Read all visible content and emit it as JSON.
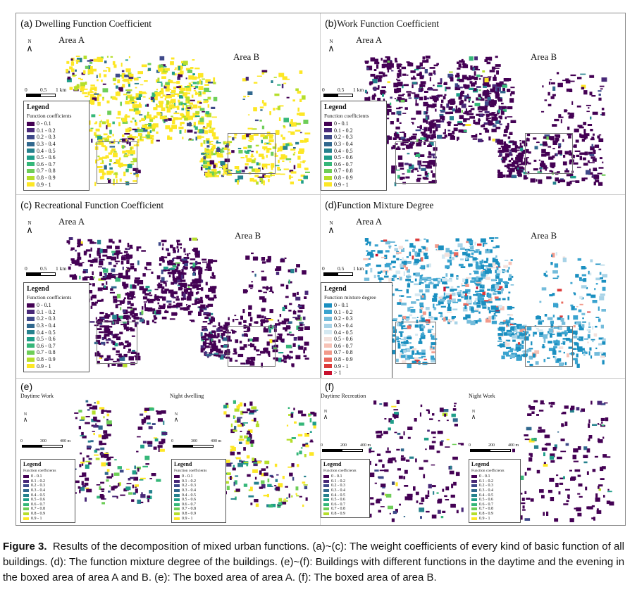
{
  "panels": {
    "a": {
      "label": "(a)",
      "title": "Dwelling Function Coefficient"
    },
    "b": {
      "label": "(b)",
      "title": "Work Function Coefficient"
    },
    "c": {
      "label": "(c)",
      "title": "Recreational Function Coefficient"
    },
    "d": {
      "label": "(d)",
      "title": "Function Mixture Degree"
    },
    "e": {
      "label": "(e)",
      "sub_left": "Daytime Work",
      "sub_right": "Night dwelling"
    },
    "f": {
      "label": "(f)",
      "sub_left": "Daytime Recreation",
      "sub_right": "Night Work"
    }
  },
  "area_a": "Area A",
  "area_b": "Area B",
  "north": "N",
  "scale_km": {
    "t0": "0",
    "t1": "0.5",
    "t2": "1 km"
  },
  "scale_e": {
    "t0": "0",
    "t1": "300",
    "t2": "400 m"
  },
  "scale_f": {
    "t0": "0",
    "t1": "200",
    "t2": "400 m"
  },
  "legend": {
    "title": "Legend",
    "subtitle": "Function coefficients",
    "subtitle_mix": "Function mixture degree",
    "rows": [
      "0 - 0.1",
      "0.1 - 0.2",
      "0.2 - 0.3",
      "0.3 - 0.4",
      "0.4 - 0.5",
      "0.5 - 0.6",
      "0.6 - 0.7",
      "0.7 - 0.8",
      "0.8 - 0.9",
      "0.9 - 1"
    ],
    "rows_mix": [
      "0 - 0.1",
      "0.1 - 0.2",
      "0.2 - 0.3",
      "0.3 - 0.4",
      "0.4 - 0.5",
      "0.5 - 0.6",
      "0.6 - 0.7",
      "0.7 - 0.8",
      "0.8 - 0.9",
      "0.9 - 1",
      "> 1"
    ],
    "rows_f": [
      "0 - 0.1",
      "0.1 - 0.2",
      "0.2 - 0.3",
      "0.3 - 0.4",
      "0.4 - 0.5",
      "0.5 - 0.6",
      "0.6 - 0.7",
      "0.7 - 0.8",
      "0.8 - 0.9"
    ],
    "colors": [
      "#440154",
      "#482878",
      "#3e4989",
      "#31688e",
      "#26828e",
      "#1f9e89",
      "#35b779",
      "#6ece58",
      "#b5de2b",
      "#fde725"
    ],
    "colors_mix": [
      "#1a8fc0",
      "#3aa3cf",
      "#74bcdb",
      "#a8d3e7",
      "#d4e8f1",
      "#f3e1dc",
      "#f6c2b6",
      "#f29a8b",
      "#ea6a5f",
      "#dc3a3a",
      "#c8102e"
    ]
  },
  "caption": {
    "label": "Figure 3.",
    "text": "Results of the decomposition of mixed urban functions. (a)~(c): The weight coefficients of every kind of basic function of all buildings. (d): The function mixture degree of the buildings. (e)~(f): Buildings with different functions in the daytime and the evening in the boxed area of area A and B. (e): The boxed area of area A. (f): The boxed area of area B."
  }
}
